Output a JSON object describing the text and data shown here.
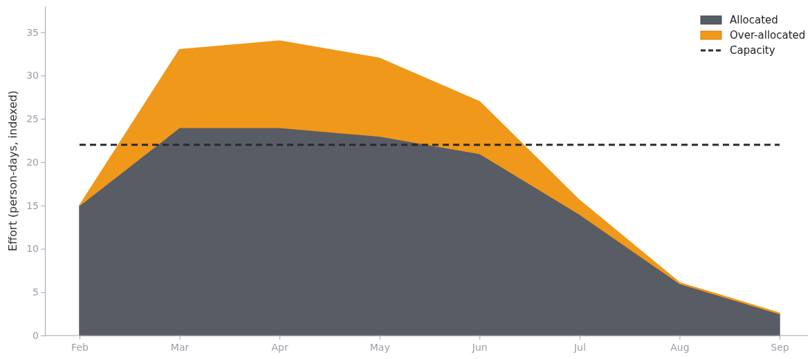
{
  "chart_data": {
    "type": "area",
    "ylabel": "Effort (person-days, indexed)",
    "categories": [
      "Feb",
      "Mar",
      "Apr",
      "May",
      "Jun",
      "Jul",
      "Aug",
      "Sep"
    ],
    "stacked": true,
    "series": [
      {
        "name": "Allocated",
        "color": "#585c64",
        "values": [
          15,
          24,
          24,
          23,
          21,
          14,
          6,
          2.5
        ]
      },
      {
        "name": "Over-allocated",
        "color": "#f0981a",
        "values": [
          0,
          9,
          10,
          9,
          6,
          1.6,
          0.1,
          0.1
        ]
      },
      {
        "name": "Capacity",
        "color": "#2a2a2e",
        "type": "line",
        "line_style": "dashed",
        "values": [
          22,
          22,
          22,
          22,
          22,
          22,
          22,
          22
        ]
      }
    ],
    "ylim": [
      0,
      38
    ],
    "yticks": [
      0,
      5,
      10,
      15,
      20,
      25,
      30,
      35
    ],
    "legend": "top right"
  }
}
